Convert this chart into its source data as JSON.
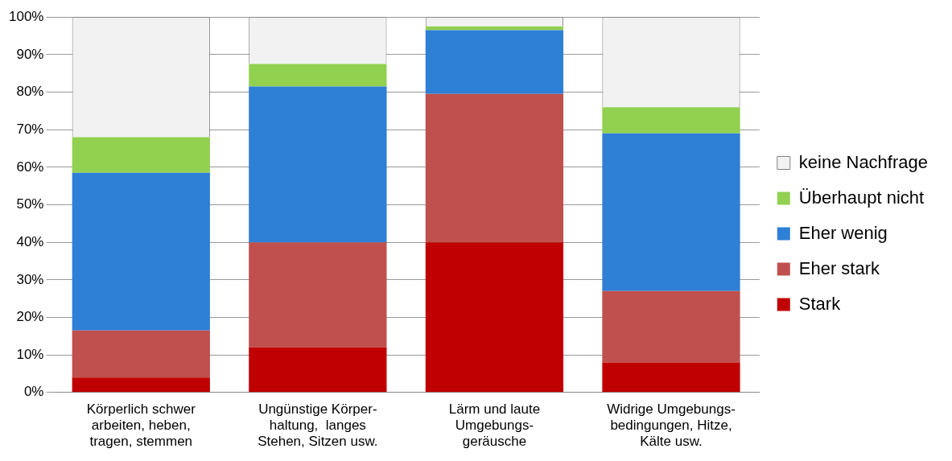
{
  "chart_data": {
    "type": "bar",
    "stacked": true,
    "categories": [
      "Körperlich schwer\narbeiten, heben,\ntragen, stemmen",
      "Ungünstige Körper-\nhaltung,  langes\nStehen, Sitzen usw.",
      "Lärm und laute\nUmgebungs-\ngeräusche",
      "Widrige Umgebungs-\nbedingungen, Hitze,\nKälte usw."
    ],
    "series": [
      {
        "name": "Stark",
        "color": "#c00000",
        "values": [
          4,
          12,
          40,
          8
        ]
      },
      {
        "name": "Eher stark",
        "color": "#c0504d",
        "values": [
          12.5,
          28,
          39.5,
          19
        ]
      },
      {
        "name": "Eher wenig",
        "color": "#2e7fd6",
        "values": [
          42,
          41.5,
          17,
          42
        ]
      },
      {
        "name": "Überhaupt nicht",
        "color": "#92d050",
        "values": [
          9.5,
          6,
          1,
          7
        ]
      },
      {
        "name": "keine Nachfrage",
        "color": "#f2f2f2",
        "values": [
          32,
          12.5,
          2.5,
          24
        ]
      }
    ],
    "ylim": [
      0,
      100
    ],
    "yticks": [
      {
        "value": 0,
        "label": "0%"
      },
      {
        "value": 10,
        "label": "10%"
      },
      {
        "value": 20,
        "label": "20%"
      },
      {
        "value": 30,
        "label": "30%"
      },
      {
        "value": 40,
        "label": "40%"
      },
      {
        "value": 50,
        "label": "50%"
      },
      {
        "value": 60,
        "label": "60%"
      },
      {
        "value": 70,
        "label": "70%"
      },
      {
        "value": 80,
        "label": "80%"
      },
      {
        "value": 90,
        "label": "90%"
      },
      {
        "value": 100,
        "label": "100%"
      }
    ],
    "grid": "y",
    "legend": "right"
  }
}
